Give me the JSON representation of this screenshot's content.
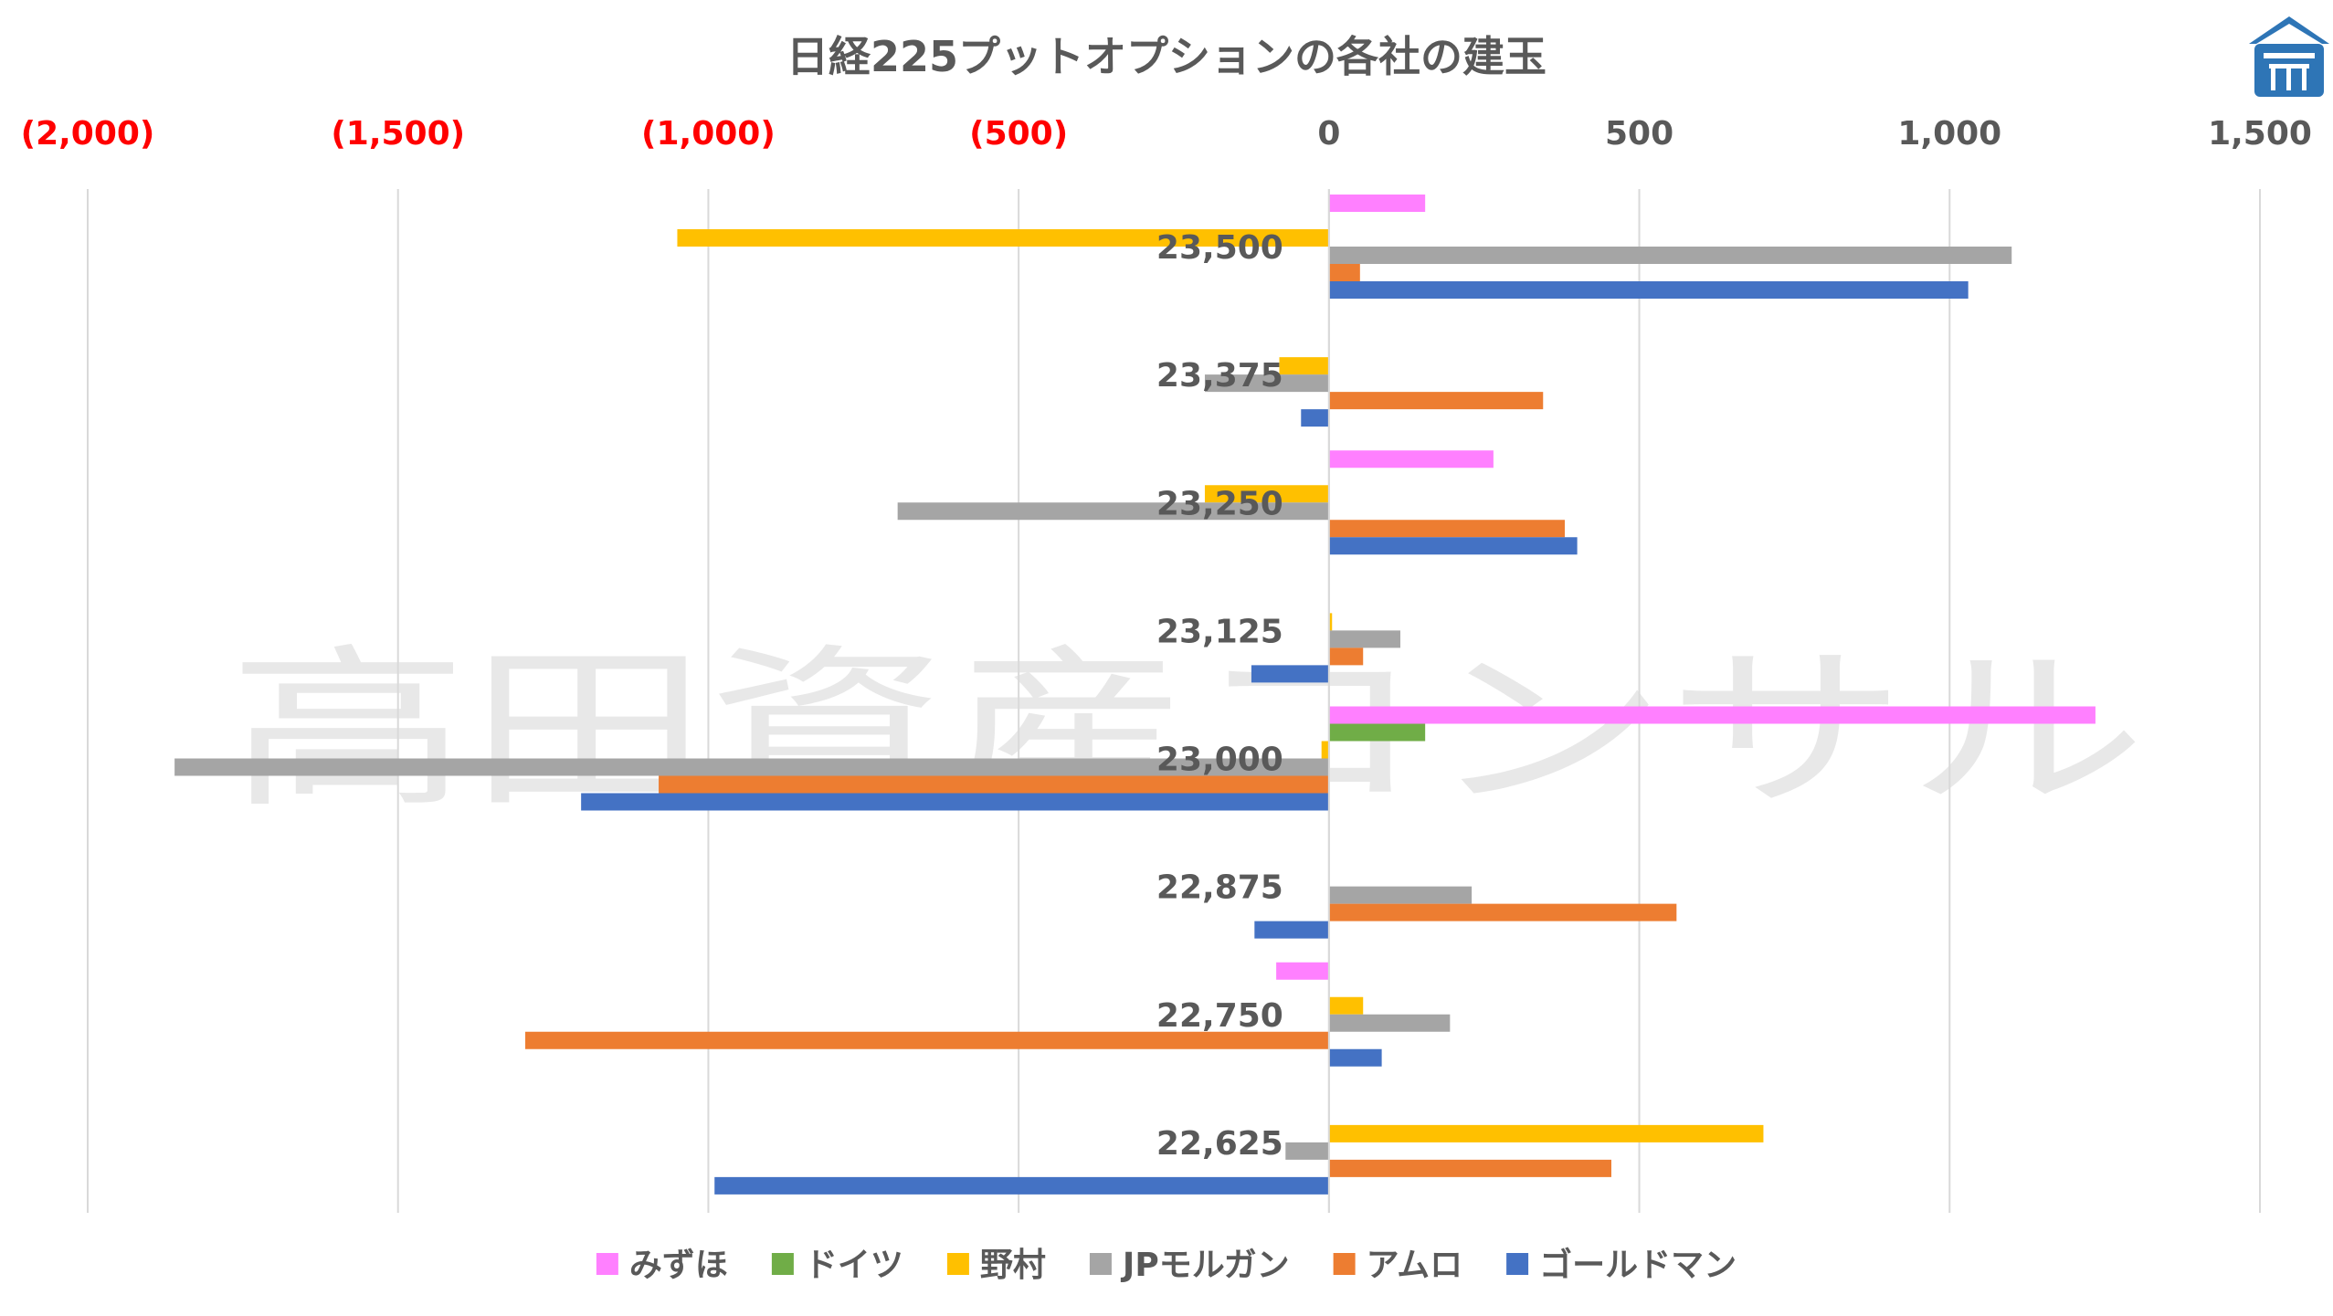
{
  "chart_data": {
    "type": "bar",
    "orientation": "horizontal",
    "title": "日経225プットオプションの各社の建玉",
    "watermark": "高田資産コンサル",
    "logo": "shrine-logo-icon",
    "xlim": [
      -2000,
      1500
    ],
    "xticks": [
      {
        "value": -2000,
        "label": "(2,000)"
      },
      {
        "value": -1500,
        "label": "(1,500)"
      },
      {
        "value": -1000,
        "label": "(1,000)"
      },
      {
        "value": -500,
        "label": "(500)"
      },
      {
        "value": 0,
        "label": "0"
      },
      {
        "value": 500,
        "label": "500"
      },
      {
        "value": 1000,
        "label": "1,000"
      },
      {
        "value": 1500,
        "label": "1,500"
      }
    ],
    "negative_tick_color": "#ff0000",
    "positive_tick_color": "#595959",
    "grid": true,
    "legend_position": "bottom",
    "categories": [
      "23,500",
      "23,375",
      "23,250",
      "23,125",
      "23,000",
      "22,875",
      "22,750",
      "22,625"
    ],
    "series": [
      {
        "name": "みずほ",
        "color": "#ff80ff",
        "values": [
          155,
          0,
          265,
          0,
          1235,
          0,
          -85,
          0
        ]
      },
      {
        "name": "ドイツ",
        "color": "#70ad47",
        "values": [
          0,
          0,
          0,
          0,
          155,
          0,
          0,
          0
        ]
      },
      {
        "name": "野村",
        "color": "#ffc000",
        "values": [
          -1050,
          -80,
          -200,
          5,
          -12,
          0,
          55,
          700
        ]
      },
      {
        "name": "JPモルガン",
        "color": "#a5a5a5",
        "values": [
          1100,
          -200,
          -695,
          115,
          -1860,
          230,
          195,
          -70
        ]
      },
      {
        "name": "アムロ",
        "color": "#ed7d31",
        "values": [
          50,
          345,
          380,
          55,
          -1080,
          560,
          -1295,
          455
        ]
      },
      {
        "name": "ゴールドマン",
        "color": "#4472c4",
        "values": [
          1030,
          -45,
          400,
          -125,
          -1205,
          -120,
          85,
          -990
        ]
      }
    ]
  }
}
